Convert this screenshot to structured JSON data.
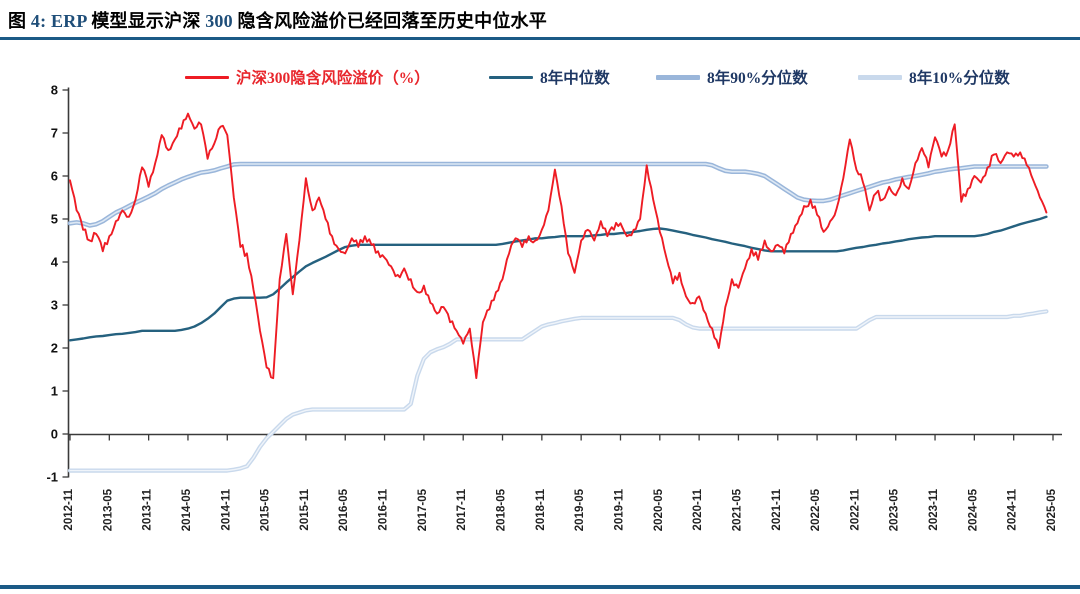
{
  "page": {
    "title": "图 4: ERP 模型显示沪深 300 隐含风险溢价已经回落至历史中位水平"
  },
  "colors": {
    "accent_blue": "#1f4e79",
    "divider_blue": "#1b5a86",
    "axis_gray": "#3a3a3a",
    "legend_navy": "#1f3864",
    "erp_red": "#ee1c24",
    "median_blue": "#25617f",
    "p90_blue": "#9ab6da",
    "p90_highlight": "#dde8f4",
    "p10_blue": "#c9d9ec",
    "p10_highlight": "#eff4fa"
  },
  "chart_data": {
    "type": "line",
    "title": "",
    "xlabel": "",
    "ylabel": "",
    "ylim": [
      -1,
      8
    ],
    "y_ticks": [
      -1,
      0,
      1,
      2,
      3,
      4,
      5,
      6,
      7,
      8
    ],
    "grid": false,
    "legend_position": "top",
    "x_start": "2012-11",
    "x_frequency": "monthly",
    "x_tick_labels": [
      "2012-11",
      "2013-05",
      "2013-11",
      "2014-05",
      "2014-11",
      "2015-05",
      "2015-11",
      "2016-05",
      "2016-11",
      "2017-05",
      "2017-11",
      "2018-05",
      "2018-11",
      "2019-05",
      "2019-11",
      "2020-05",
      "2020-11",
      "2021-05",
      "2021-11",
      "2022-05",
      "2022-11",
      "2023-05",
      "2023-11",
      "2024-05",
      "2024-11",
      "2025-05"
    ],
    "series": [
      {
        "key": "erp",
        "name": "沪深300隐含风险溢价（%）",
        "color": "#ee1c24",
        "label_color": "#e8262c",
        "values": [
          5.9,
          5.2,
          4.75,
          4.5,
          4.65,
          4.25,
          4.6,
          4.95,
          5.2,
          5.05,
          5.45,
          6.2,
          5.75,
          6.3,
          6.95,
          6.6,
          6.85,
          7.1,
          7.45,
          7.1,
          7.2,
          6.4,
          6.75,
          7.15,
          6.95,
          5.5,
          4.35,
          4.2,
          3.35,
          2.4,
          1.55,
          1.3,
          3.6,
          4.65,
          3.25,
          4.5,
          5.95,
          5.2,
          5.5,
          5.0,
          4.6,
          4.3,
          4.2,
          4.55,
          4.35,
          4.6,
          4.4,
          4.25,
          4.1,
          3.9,
          3.7,
          3.85,
          3.6,
          3.3,
          3.45,
          3.05,
          2.8,
          2.95,
          2.6,
          2.4,
          2.1,
          2.45,
          1.3,
          2.6,
          2.9,
          3.3,
          3.6,
          4.2,
          4.55,
          4.35,
          4.6,
          4.5,
          4.75,
          5.2,
          6.15,
          5.3,
          4.2,
          3.75,
          4.5,
          4.75,
          4.5,
          4.95,
          4.6,
          4.75,
          4.9,
          4.6,
          4.75,
          5.0,
          6.25,
          5.45,
          4.7,
          4.1,
          3.5,
          3.75,
          3.2,
          3.05,
          3.2,
          2.8,
          2.45,
          2.0,
          2.95,
          3.6,
          3.4,
          3.85,
          4.3,
          4.05,
          4.5,
          4.25,
          4.4,
          4.2,
          4.65,
          4.9,
          5.3,
          5.45,
          5.1,
          4.7,
          4.95,
          5.25,
          5.95,
          6.85,
          6.15,
          5.85,
          5.2,
          5.6,
          5.45,
          5.75,
          5.55,
          5.95,
          5.7,
          6.3,
          6.65,
          6.2,
          6.9,
          6.45,
          6.6,
          7.2,
          5.4,
          5.7,
          6.0,
          5.85,
          6.2,
          6.5,
          6.3,
          6.55,
          6.45,
          6.55,
          6.25,
          5.9,
          5.5,
          5.15
        ]
      },
      {
        "key": "median",
        "name": "8年中位数",
        "color": "#25617f",
        "label_color": "#1f3864",
        "values": [
          2.18,
          2.2,
          2.22,
          2.25,
          2.27,
          2.28,
          2.3,
          2.32,
          2.33,
          2.35,
          2.37,
          2.4,
          2.4,
          2.4,
          2.4,
          2.4,
          2.4,
          2.42,
          2.45,
          2.5,
          2.58,
          2.68,
          2.8,
          2.95,
          3.1,
          3.15,
          3.17,
          3.17,
          3.17,
          3.17,
          3.18,
          3.25,
          3.38,
          3.52,
          3.65,
          3.78,
          3.9,
          3.98,
          4.05,
          4.12,
          4.2,
          4.28,
          4.35,
          4.38,
          4.4,
          4.4,
          4.4,
          4.4,
          4.4,
          4.4,
          4.4,
          4.4,
          4.4,
          4.4,
          4.4,
          4.4,
          4.4,
          4.4,
          4.4,
          4.4,
          4.4,
          4.4,
          4.4,
          4.4,
          4.4,
          4.4,
          4.42,
          4.45,
          4.48,
          4.5,
          4.52,
          4.55,
          4.55,
          4.57,
          4.58,
          4.6,
          4.6,
          4.6,
          4.6,
          4.6,
          4.62,
          4.63,
          4.65,
          4.65,
          4.67,
          4.68,
          4.7,
          4.72,
          4.75,
          4.77,
          4.78,
          4.76,
          4.73,
          4.7,
          4.67,
          4.63,
          4.6,
          4.57,
          4.53,
          4.5,
          4.47,
          4.43,
          4.4,
          4.37,
          4.33,
          4.3,
          4.27,
          4.25,
          4.25,
          4.25,
          4.25,
          4.25,
          4.25,
          4.25,
          4.25,
          4.25,
          4.25,
          4.25,
          4.27,
          4.3,
          4.33,
          4.35,
          4.38,
          4.4,
          4.43,
          4.45,
          4.48,
          4.5,
          4.53,
          4.55,
          4.57,
          4.58,
          4.6,
          4.6,
          4.6,
          4.6,
          4.6,
          4.6,
          4.6,
          4.62,
          4.65,
          4.7,
          4.73,
          4.78,
          4.83,
          4.88,
          4.92,
          4.96,
          5.0,
          5.05
        ]
      },
      {
        "key": "p90",
        "name": "8年90%分位数",
        "color": "#9ab6da",
        "label_color": "#1f3864",
        "values": [
          4.9,
          4.92,
          4.9,
          4.85,
          4.88,
          4.95,
          5.05,
          5.15,
          5.22,
          5.3,
          5.38,
          5.45,
          5.52,
          5.6,
          5.7,
          5.78,
          5.85,
          5.92,
          5.98,
          6.03,
          6.08,
          6.1,
          6.13,
          6.18,
          6.22,
          6.27,
          6.28,
          6.28,
          6.28,
          6.28,
          6.28,
          6.28,
          6.28,
          6.28,
          6.28,
          6.28,
          6.28,
          6.28,
          6.28,
          6.28,
          6.28,
          6.28,
          6.28,
          6.28,
          6.28,
          6.28,
          6.28,
          6.28,
          6.28,
          6.28,
          6.28,
          6.28,
          6.28,
          6.28,
          6.28,
          6.28,
          6.28,
          6.28,
          6.28,
          6.28,
          6.28,
          6.28,
          6.28,
          6.28,
          6.28,
          6.28,
          6.28,
          6.28,
          6.28,
          6.28,
          6.28,
          6.28,
          6.28,
          6.28,
          6.28,
          6.28,
          6.28,
          6.28,
          6.28,
          6.28,
          6.28,
          6.28,
          6.28,
          6.28,
          6.28,
          6.28,
          6.28,
          6.28,
          6.28,
          6.28,
          6.28,
          6.28,
          6.28,
          6.28,
          6.28,
          6.28,
          6.28,
          6.28,
          6.25,
          6.18,
          6.12,
          6.1,
          6.1,
          6.1,
          6.08,
          6.05,
          6.0,
          5.9,
          5.8,
          5.7,
          5.6,
          5.5,
          5.45,
          5.43,
          5.42,
          5.42,
          5.45,
          5.5,
          5.55,
          5.6,
          5.65,
          5.7,
          5.75,
          5.8,
          5.85,
          5.88,
          5.92,
          5.95,
          5.98,
          6.0,
          6.03,
          6.06,
          6.1,
          6.12,
          6.15,
          6.17,
          6.18,
          6.2,
          6.22,
          6.22,
          6.22,
          6.22,
          6.22,
          6.22,
          6.22,
          6.22,
          6.22,
          6.22,
          6.22,
          6.22
        ]
      },
      {
        "key": "p10",
        "name": "8年10%分位数",
        "color": "#c9d9ec",
        "label_color": "#1f3864",
        "values": [
          -0.85,
          -0.85,
          -0.85,
          -0.85,
          -0.85,
          -0.85,
          -0.85,
          -0.85,
          -0.85,
          -0.85,
          -0.85,
          -0.85,
          -0.85,
          -0.85,
          -0.85,
          -0.85,
          -0.85,
          -0.85,
          -0.85,
          -0.85,
          -0.85,
          -0.85,
          -0.85,
          -0.85,
          -0.85,
          -0.83,
          -0.8,
          -0.75,
          -0.55,
          -0.3,
          -0.1,
          0.05,
          0.2,
          0.35,
          0.45,
          0.5,
          0.55,
          0.57,
          0.57,
          0.57,
          0.57,
          0.57,
          0.57,
          0.57,
          0.57,
          0.57,
          0.57,
          0.57,
          0.57,
          0.57,
          0.57,
          0.57,
          0.7,
          1.35,
          1.75,
          1.9,
          1.97,
          2.02,
          2.1,
          2.2,
          2.2,
          2.2,
          2.2,
          2.2,
          2.2,
          2.2,
          2.2,
          2.2,
          2.2,
          2.2,
          2.3,
          2.4,
          2.5,
          2.55,
          2.58,
          2.62,
          2.65,
          2.68,
          2.7,
          2.7,
          2.7,
          2.7,
          2.7,
          2.7,
          2.7,
          2.7,
          2.7,
          2.7,
          2.7,
          2.7,
          2.7,
          2.7,
          2.7,
          2.65,
          2.55,
          2.48,
          2.45,
          2.45,
          2.45,
          2.45,
          2.45,
          2.45,
          2.45,
          2.45,
          2.45,
          2.45,
          2.45,
          2.45,
          2.45,
          2.45,
          2.45,
          2.45,
          2.45,
          2.45,
          2.45,
          2.45,
          2.45,
          2.45,
          2.45,
          2.45,
          2.45,
          2.55,
          2.65,
          2.72,
          2.72,
          2.72,
          2.72,
          2.72,
          2.72,
          2.72,
          2.72,
          2.72,
          2.72,
          2.72,
          2.72,
          2.72,
          2.72,
          2.72,
          2.72,
          2.72,
          2.72,
          2.72,
          2.72,
          2.72,
          2.75,
          2.75,
          2.78,
          2.8,
          2.83,
          2.85
        ]
      }
    ]
  }
}
